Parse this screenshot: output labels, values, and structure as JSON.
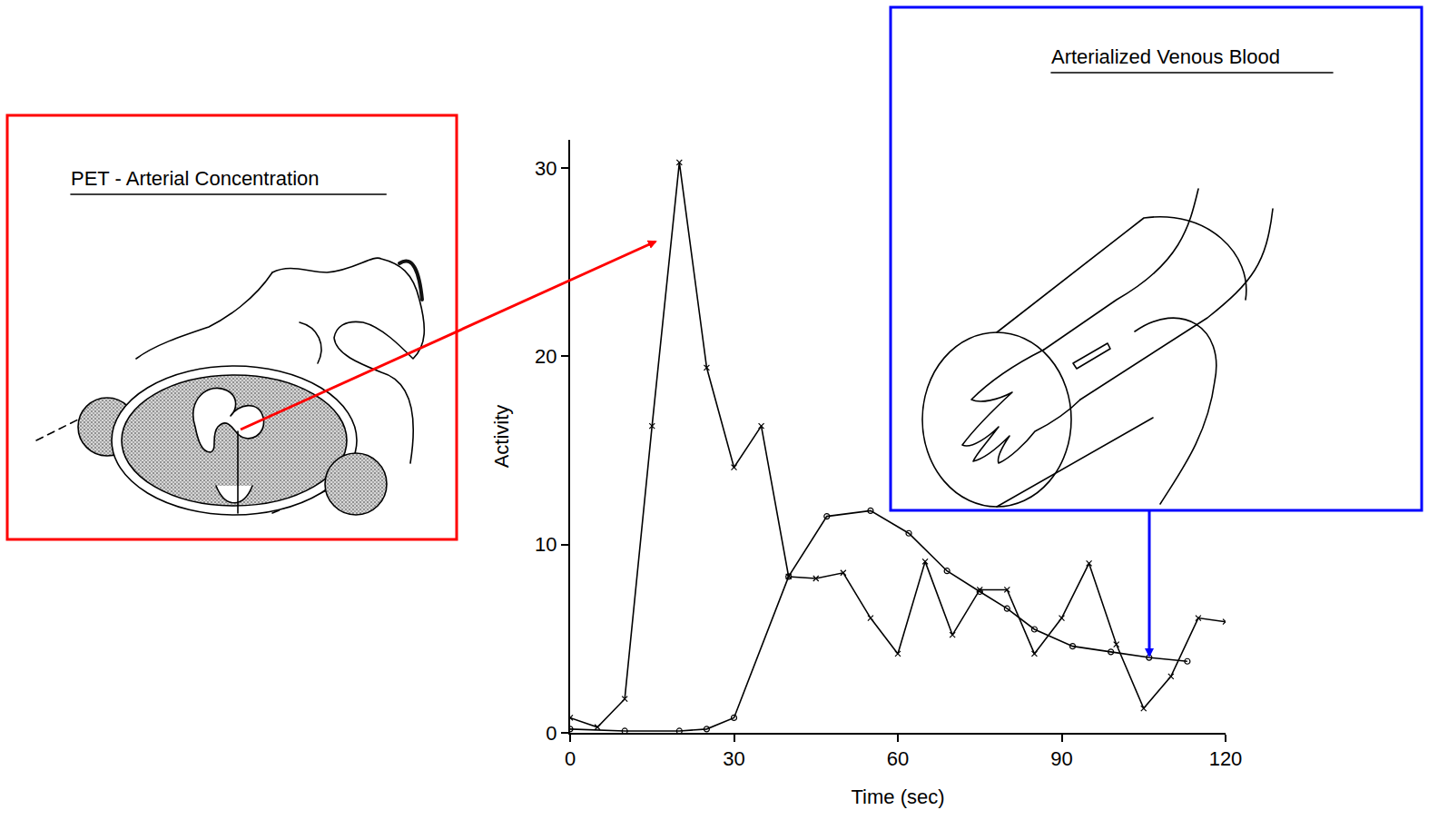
{
  "chart_data": {
    "type": "line",
    "x_label": "Time (sec)",
    "y_label": "Activity",
    "xlim": [
      0,
      120
    ],
    "xticks": [
      0,
      30,
      60,
      90,
      120
    ],
    "ylim": [
      0,
      31.5
    ],
    "yticks": [
      0,
      10,
      20,
      30
    ],
    "grid": false,
    "series": [
      {
        "name": "PET - Arterial Concentration",
        "color": "#000000",
        "marker": "x",
        "line_style": "solid",
        "x": [
          0,
          5,
          10,
          15,
          20,
          25,
          30,
          35,
          40,
          45,
          50,
          55,
          60,
          65,
          70,
          75,
          80,
          85,
          90,
          95,
          100,
          105,
          110,
          115,
          120
        ],
        "values": [
          0.8,
          0.3,
          1.8,
          16.3,
          30.3,
          19.4,
          14.1,
          16.3,
          8.3,
          8.2,
          8.5,
          6.1,
          4.2,
          9.1,
          5.2,
          7.6,
          7.6,
          4.2,
          6.1,
          9.0,
          4.7,
          1.3,
          3.0,
          6.1,
          5.9
        ]
      },
      {
        "name": "Arterialized Venous Blood",
        "color": "#000000",
        "marker": "circle",
        "line_style": "solid",
        "x": [
          0,
          10,
          20,
          25,
          30,
          40,
          47,
          55,
          62,
          69,
          75,
          80,
          85,
          92,
          99,
          106,
          113
        ],
        "values": [
          0.2,
          0.1,
          0.1,
          0.2,
          0.8,
          8.3,
          11.5,
          11.8,
          10.6,
          8.6,
          7.5,
          6.6,
          5.5,
          4.6,
          4.3,
          4.0,
          3.8
        ]
      }
    ]
  }
}
